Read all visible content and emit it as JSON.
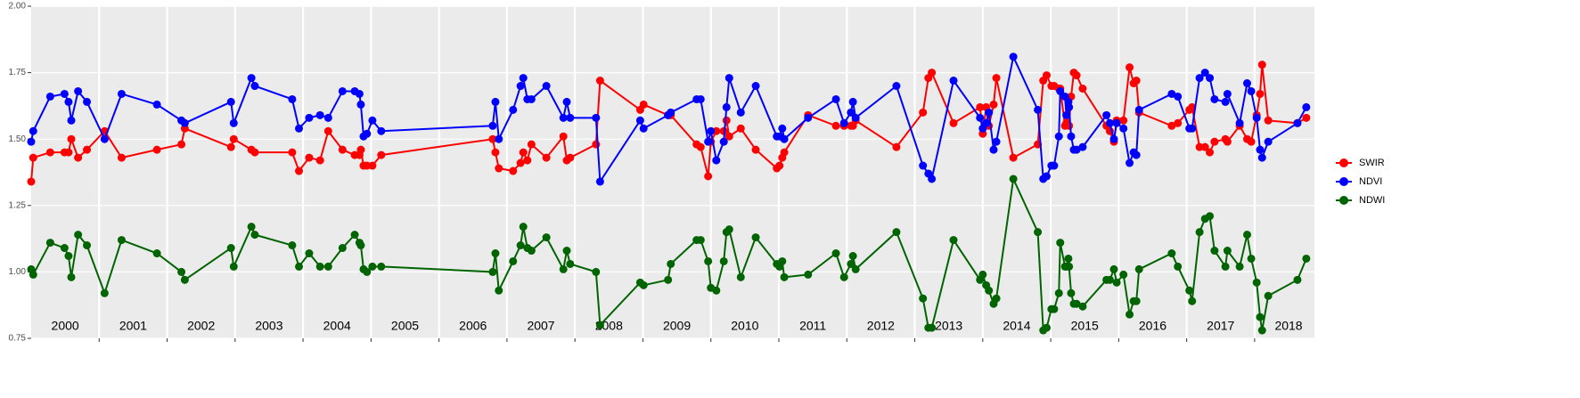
{
  "chart_data": {
    "type": "line",
    "x": [
      2000.0,
      2000.03,
      2000.28,
      2000.49,
      2000.55,
      2000.59,
      2000.69,
      2000.82,
      2001.08,
      2001.33,
      2001.85,
      2002.21,
      2002.26,
      2002.94,
      2002.98,
      2003.24,
      2003.29,
      2003.84,
      2003.94,
      2004.09,
      2004.25,
      2004.37,
      2004.58,
      2004.76,
      2004.83,
      2004.85,
      2004.89,
      2004.94,
      2005.02,
      2005.15,
      2006.79,
      2006.83,
      2006.88,
      2007.09,
      2007.2,
      2007.24,
      2007.3,
      2007.36,
      2007.58,
      2007.83,
      2007.88,
      2007.93,
      2008.31,
      2008.37,
      2008.96,
      2009.01,
      2009.37,
      2009.41,
      2009.79,
      2009.85,
      2009.96,
      2010.0,
      2010.08,
      2010.19,
      2010.23,
      2010.27,
      2010.44,
      2010.66,
      2010.97,
      2011.01,
      2011.05,
      2011.08,
      2011.43,
      2011.84,
      2011.96,
      2012.06,
      2012.09,
      2012.13,
      2012.73,
      2013.12,
      2013.2,
      2013.25,
      2013.57,
      2013.96,
      2014.0,
      2014.05,
      2014.09,
      2014.16,
      2014.2,
      2014.45,
      2014.81,
      2014.89,
      2014.94,
      2015.01,
      2015.05,
      2015.12,
      2015.14,
      2015.21,
      2015.23,
      2015.26,
      2015.27,
      2015.3,
      2015.34,
      2015.38,
      2015.47,
      2015.82,
      2015.87,
      2015.93,
      2015.97,
      2016.07,
      2016.16,
      2016.22,
      2016.26,
      2016.3,
      2016.78,
      2016.87,
      2017.04,
      2017.08,
      2017.19,
      2017.27,
      2017.34,
      2017.41,
      2017.57,
      2017.6,
      2017.78,
      2017.89,
      2017.95,
      2018.03,
      2018.08,
      2018.11,
      2018.2,
      2018.63,
      2018.76
    ],
    "series": [
      {
        "name": "SWIR",
        "color": "#ff0000",
        "values": [
          1.34,
          1.43,
          1.45,
          1.45,
          1.45,
          1.5,
          1.43,
          1.46,
          1.53,
          1.43,
          1.46,
          1.48,
          1.54,
          1.47,
          1.5,
          1.46,
          1.45,
          1.45,
          1.38,
          1.43,
          1.42,
          1.53,
          1.46,
          1.44,
          1.44,
          1.46,
          1.4,
          1.4,
          1.4,
          1.44,
          1.5,
          1.45,
          1.39,
          1.38,
          1.41,
          1.45,
          1.42,
          1.48,
          1.43,
          1.51,
          1.42,
          1.43,
          1.48,
          1.72,
          1.61,
          1.63,
          1.59,
          1.59,
          1.48,
          1.47,
          1.36,
          1.49,
          1.53,
          1.53,
          1.57,
          1.51,
          1.54,
          1.46,
          1.39,
          1.4,
          1.43,
          1.45,
          1.59,
          1.55,
          1.55,
          1.55,
          1.55,
          1.57,
          1.47,
          1.6,
          1.73,
          1.75,
          1.56,
          1.62,
          1.52,
          1.62,
          1.55,
          1.63,
          1.73,
          1.43,
          1.48,
          1.72,
          1.74,
          1.7,
          1.7,
          1.69,
          1.69,
          1.55,
          1.56,
          1.65,
          1.55,
          1.66,
          1.75,
          1.74,
          1.69,
          1.55,
          1.53,
          1.49,
          1.57,
          1.57,
          1.77,
          1.71,
          1.72,
          1.6,
          1.55,
          1.56,
          1.61,
          1.62,
          1.47,
          1.47,
          1.45,
          1.49,
          1.5,
          1.49,
          1.55,
          1.5,
          1.49,
          1.59,
          1.67,
          1.78,
          1.57,
          1.56,
          1.58
        ]
      },
      {
        "name": "NDVI",
        "color": "#0000ff",
        "values": [
          1.49,
          1.53,
          1.66,
          1.67,
          1.64,
          1.57,
          1.68,
          1.64,
          1.5,
          1.67,
          1.63,
          1.57,
          1.56,
          1.64,
          1.56,
          1.73,
          1.7,
          1.65,
          1.54,
          1.58,
          1.59,
          1.58,
          1.68,
          1.68,
          1.67,
          1.63,
          1.51,
          1.52,
          1.57,
          1.53,
          1.55,
          1.64,
          1.5,
          1.61,
          1.7,
          1.73,
          1.65,
          1.65,
          1.7,
          1.58,
          1.64,
          1.58,
          1.58,
          1.34,
          1.57,
          1.54,
          1.59,
          1.6,
          1.65,
          1.65,
          1.49,
          1.53,
          1.42,
          1.49,
          1.62,
          1.73,
          1.6,
          1.7,
          1.51,
          1.51,
          1.54,
          1.5,
          1.58,
          1.65,
          1.56,
          1.6,
          1.64,
          1.58,
          1.7,
          1.4,
          1.37,
          1.35,
          1.72,
          1.58,
          1.54,
          1.56,
          1.6,
          1.46,
          1.49,
          1.81,
          1.61,
          1.35,
          1.36,
          1.4,
          1.4,
          1.51,
          1.68,
          1.66,
          1.59,
          1.64,
          1.62,
          1.51,
          1.46,
          1.46,
          1.47,
          1.59,
          1.56,
          1.5,
          1.56,
          1.54,
          1.41,
          1.45,
          1.44,
          1.61,
          1.67,
          1.66,
          1.54,
          1.54,
          1.73,
          1.75,
          1.73,
          1.65,
          1.64,
          1.67,
          1.56,
          1.71,
          1.68,
          1.58,
          1.46,
          1.43,
          1.49,
          1.56,
          1.62
        ]
      },
      {
        "name": "NDWI",
        "color": "#006400",
        "values": [
          1.01,
          0.99,
          1.11,
          1.09,
          1.06,
          0.98,
          1.14,
          1.1,
          0.92,
          1.12,
          1.07,
          1.0,
          0.97,
          1.09,
          1.02,
          1.17,
          1.14,
          1.1,
          1.02,
          1.07,
          1.02,
          1.02,
          1.09,
          1.14,
          1.11,
          1.1,
          1.01,
          1.0,
          1.02,
          1.02,
          1.0,
          1.07,
          0.93,
          1.04,
          1.1,
          1.17,
          1.09,
          1.08,
          1.13,
          1.01,
          1.08,
          1.03,
          1.0,
          0.8,
          0.96,
          0.95,
          0.97,
          1.03,
          1.12,
          1.12,
          1.04,
          0.94,
          0.93,
          1.04,
          1.15,
          1.16,
          0.98,
          1.13,
          1.03,
          1.02,
          1.04,
          0.98,
          0.99,
          1.07,
          0.98,
          1.03,
          1.06,
          1.01,
          1.15,
          0.9,
          0.79,
          0.79,
          1.12,
          0.97,
          0.99,
          0.95,
          0.93,
          0.88,
          0.9,
          1.35,
          1.15,
          0.78,
          0.79,
          0.86,
          0.86,
          0.92,
          1.11,
          1.02,
          1.02,
          1.05,
          1.02,
          0.92,
          0.88,
          0.88,
          0.87,
          0.97,
          0.97,
          1.01,
          0.96,
          0.99,
          0.84,
          0.89,
          0.89,
          1.01,
          1.07,
          1.02,
          0.93,
          0.89,
          1.15,
          1.2,
          1.21,
          1.08,
          1.02,
          1.08,
          1.02,
          1.14,
          1.05,
          0.96,
          0.83,
          0.78,
          0.91,
          0.97,
          1.05
        ]
      }
    ],
    "xlim": [
      2000,
      2018.88
    ],
    "xticks": [
      2001,
      2002,
      2003,
      2004,
      2005,
      2006,
      2007,
      2008,
      2009,
      2010,
      2011,
      2012,
      2013,
      2014,
      2015,
      2016,
      2017,
      2018
    ],
    "x_labels": [
      2000,
      2001,
      2002,
      2003,
      2004,
      2005,
      2006,
      2007,
      2008,
      2009,
      2010,
      2011,
      2012,
      2013,
      2014,
      2015,
      2016,
      2017,
      2018
    ],
    "ylim": [
      0.75,
      2.0
    ],
    "yticks": [
      {
        "value": 0.75,
        "label": "0.75"
      },
      {
        "value": 1,
        "label": "1.00"
      },
      {
        "value": 1.25,
        "label": "1.25"
      },
      {
        "value": 1.5,
        "label": "1.50"
      },
      {
        "value": 1.75,
        "label": "1.75"
      },
      {
        "value": 2,
        "label": "2.00"
      }
    ],
    "grid": true,
    "legend": "right"
  }
}
